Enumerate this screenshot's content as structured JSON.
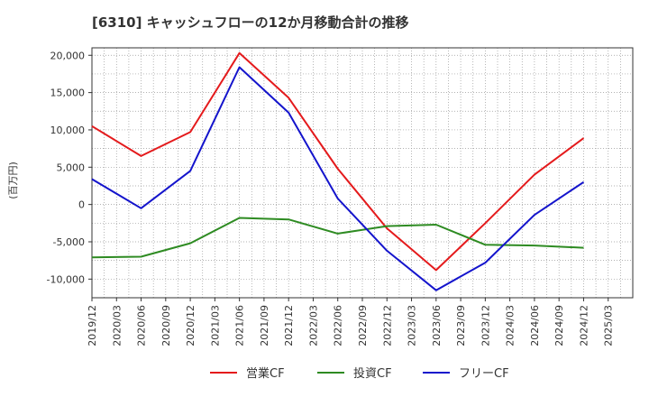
{
  "chart_data": {
    "type": "line",
    "title": "[6310]  キャッシュフローの12か月移動合計の推移",
    "ylabel": "(百万円)",
    "xlabel": "",
    "ylim": [
      -12500,
      21000
    ],
    "yticks": [
      20000,
      15000,
      10000,
      5000,
      0,
      -5000,
      -10000
    ],
    "ytick_labels": [
      "20,000",
      "15,000",
      "10,000",
      "5,000",
      "0",
      "-5,000",
      "-10,000"
    ],
    "categories": [
      "2019/12",
      "2020/03",
      "2020/06",
      "2020/09",
      "2020/12",
      "2021/03",
      "2021/06",
      "2021/09",
      "2021/12",
      "2022/03",
      "2022/06",
      "2022/09",
      "2022/12",
      "2023/03",
      "2023/06",
      "2023/09",
      "2023/12",
      "2024/03",
      "2024/06",
      "2024/09",
      "2024/12",
      "2025/03"
    ],
    "grid": true,
    "legend_position": "bottom",
    "series": [
      {
        "name": "営業CF",
        "color": "#e41a1c",
        "points": [
          [
            "2019/12",
            10500
          ],
          [
            "2020/06",
            6500
          ],
          [
            "2020/12",
            9700
          ],
          [
            "2021/06",
            20300
          ],
          [
            "2021/12",
            14300
          ],
          [
            "2022/06",
            4800
          ],
          [
            "2022/12",
            -3200
          ],
          [
            "2023/06",
            -8800
          ],
          [
            "2023/12",
            -2500
          ],
          [
            "2024/06",
            4000
          ],
          [
            "2024/12",
            8900
          ]
        ]
      },
      {
        "name": "投資CF",
        "color": "#2e8b22",
        "points": [
          [
            "2019/12",
            -7100
          ],
          [
            "2020/06",
            -7000
          ],
          [
            "2020/12",
            -5200
          ],
          [
            "2021/06",
            -1800
          ],
          [
            "2021/12",
            -2000
          ],
          [
            "2022/06",
            -3900
          ],
          [
            "2022/12",
            -2900
          ],
          [
            "2023/06",
            -2700
          ],
          [
            "2023/12",
            -5400
          ],
          [
            "2024/06",
            -5500
          ],
          [
            "2024/12",
            -5800
          ]
        ]
      },
      {
        "name": "フリーCF",
        "color": "#1414cc",
        "points": [
          [
            "2019/12",
            3400
          ],
          [
            "2020/06",
            -500
          ],
          [
            "2020/12",
            4500
          ],
          [
            "2021/06",
            18400
          ],
          [
            "2021/12",
            12300
          ],
          [
            "2022/06",
            800
          ],
          [
            "2022/12",
            -6200
          ],
          [
            "2023/06",
            -11500
          ],
          [
            "2023/12",
            -7800
          ],
          [
            "2024/06",
            -1400
          ],
          [
            "2024/12",
            3000
          ]
        ]
      }
    ]
  }
}
